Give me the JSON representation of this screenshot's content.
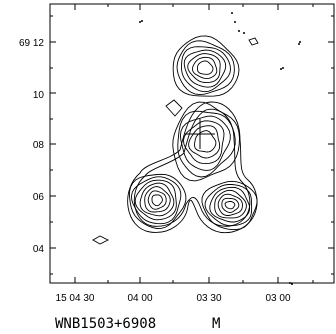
{
  "chart_data": {
    "type": "contour",
    "title": "WNB1503+6908",
    "polarization": "M",
    "xlabel": "",
    "ylabel": "",
    "x_axis": {
      "ticks": [
        "15 04 30",
        "04 00",
        "03 30",
        "03 00"
      ],
      "range_seconds_ra": [
        50,
        -5
      ]
    },
    "y_axis": {
      "ticks": [
        "69 12",
        "10",
        "08",
        "06",
        "04"
      ],
      "range_arcmin_offset": [
        2.5,
        -2.8
      ]
    },
    "cross_marker": {
      "ra_s": 14.7,
      "dec_min": 8.0
    },
    "components": [
      {
        "name": "",
        "ra_s": 12.5,
        "dec_min": 11.0,
        "levels": 7
      },
      {
        "name": "",
        "ra_s": 12.0,
        "dec_min": 8.1,
        "levels": 9
      },
      {
        "name": "",
        "ra_s": 23.5,
        "dec_min": 6.0,
        "levels": 7
      },
      {
        "name": "",
        "ra_s": 6.0,
        "dec_min": 5.7,
        "levels": 7
      }
    ],
    "grid": false,
    "legend": "none"
  }
}
